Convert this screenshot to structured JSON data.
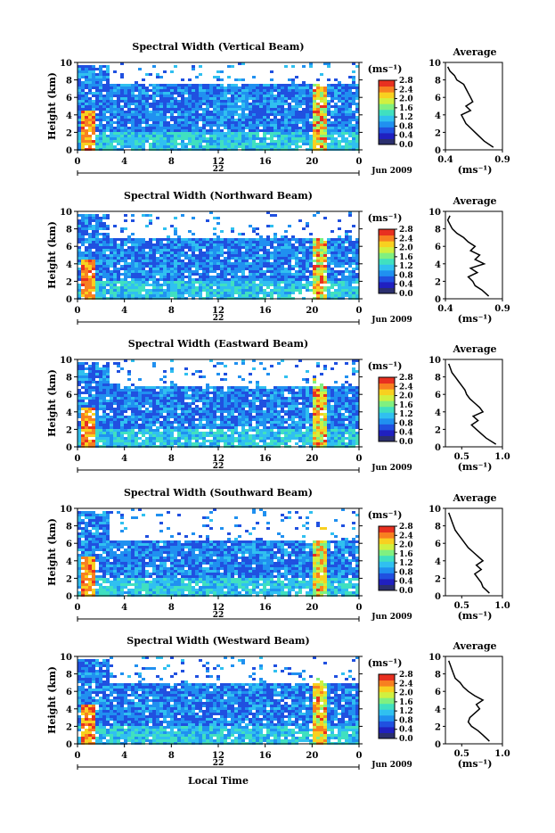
{
  "figure": {
    "ylabel": "Height (km)",
    "xlabel": "Local Time",
    "date_label": "Jun 2009",
    "day_label": "22",
    "unit_label": "(ms⁻¹)",
    "avg_title": "Average",
    "avg_unit": "(ms⁻¹)"
  },
  "colors": {
    "scale": [
      "#2b2f6e",
      "#2020c0",
      "#2050e0",
      "#2090f0",
      "#30c0f0",
      "#40e0c0",
      "#80f080",
      "#d0f040",
      "#f8d020",
      "#f88020",
      "#e83020"
    ],
    "background": "#ffffff"
  },
  "chart_data": [
    {
      "type": "heatmap",
      "title": "Spectral Width (Vertical Beam)",
      "xlim": [
        0,
        24
      ],
      "ylim": [
        0,
        10
      ],
      "xticks": [
        "0",
        "4",
        "8",
        "12",
        "16",
        "20",
        "0"
      ],
      "yticks": [
        "0",
        "2",
        "4",
        "6",
        "8",
        "10"
      ],
      "colorbar_ticks": [
        "0.0",
        "0.4",
        "0.8",
        "1.2",
        "1.6",
        "2.0",
        "2.4",
        "2.8"
      ],
      "colorbar_range": [
        0,
        2.8
      ],
      "top_km": 7.6,
      "profile": {
        "xlim": [
          0.4,
          0.9
        ],
        "xticks": [
          "0.4",
          "0.9"
        ],
        "height": [
          0.3,
          1,
          1.5,
          2,
          2.5,
          3,
          3.5,
          4,
          4.5,
          5,
          5.5,
          6,
          6.5,
          7,
          7.5,
          8,
          8.5,
          9,
          9.5
        ],
        "width": [
          0.82,
          0.74,
          0.7,
          0.66,
          0.62,
          0.58,
          0.56,
          0.54,
          0.62,
          0.58,
          0.64,
          0.62,
          0.6,
          0.58,
          0.56,
          0.5,
          0.48,
          0.44,
          0.42
        ]
      }
    },
    {
      "type": "heatmap",
      "title": "Spectral Width (Northward Beam)",
      "xlim": [
        0,
        24
      ],
      "ylim": [
        0,
        10
      ],
      "xticks": [
        "0",
        "4",
        "8",
        "12",
        "16",
        "20",
        "0"
      ],
      "yticks": [
        "0",
        "2",
        "4",
        "6",
        "8",
        "10"
      ],
      "colorbar_ticks": [
        "0.0",
        "0.4",
        "0.8",
        "1.2",
        "1.6",
        "2.0",
        "2.4",
        "2.8"
      ],
      "colorbar_range": [
        0,
        2.8
      ],
      "top_km": 7.0,
      "profile": {
        "xlim": [
          0.4,
          0.9
        ],
        "xticks": [
          "0.4",
          "0.9"
        ],
        "height": [
          0.3,
          1,
          1.5,
          2,
          2.5,
          3,
          3.5,
          4,
          4.5,
          5,
          5.5,
          6,
          6.5,
          7,
          7.5,
          8,
          8.5,
          9,
          9.5
        ],
        "width": [
          0.78,
          0.72,
          0.66,
          0.64,
          0.6,
          0.68,
          0.62,
          0.74,
          0.66,
          0.7,
          0.62,
          0.66,
          0.6,
          0.56,
          0.5,
          0.46,
          0.44,
          0.42,
          0.44
        ]
      }
    },
    {
      "type": "heatmap",
      "title": "Spectral Width (Eastward Beam)",
      "xlim": [
        0,
        24
      ],
      "ylim": [
        0,
        10
      ],
      "xticks": [
        "0",
        "4",
        "8",
        "12",
        "16",
        "20",
        "0"
      ],
      "yticks": [
        "0",
        "2",
        "4",
        "6",
        "8",
        "10"
      ],
      "colorbar_ticks": [
        "0.0",
        "0.4",
        "0.8",
        "1.2",
        "1.6",
        "2.0",
        "2.4",
        "2.8"
      ],
      "colorbar_range": [
        0,
        2.8
      ],
      "top_km": 7.0,
      "profile": {
        "xlim": [
          0.3,
          1.0
        ],
        "xticks": [
          "0.5",
          "1.0"
        ],
        "height": [
          0.3,
          1,
          1.5,
          2,
          2.5,
          3,
          3.5,
          4,
          4.5,
          5,
          5.5,
          6,
          6.5,
          7,
          7.5,
          8,
          8.5,
          9,
          9.5
        ],
        "width": [
          0.92,
          0.8,
          0.74,
          0.68,
          0.62,
          0.7,
          0.64,
          0.76,
          0.72,
          0.66,
          0.6,
          0.56,
          0.54,
          0.5,
          0.46,
          0.42,
          0.38,
          0.36,
          0.34
        ]
      }
    },
    {
      "type": "heatmap",
      "title": "Spectral Width (Southward Beam)",
      "xlim": [
        0,
        24
      ],
      "ylim": [
        0,
        10
      ],
      "xticks": [
        "0",
        "4",
        "8",
        "12",
        "16",
        "20",
        "0"
      ],
      "yticks": [
        "0",
        "2",
        "4",
        "6",
        "8",
        "10"
      ],
      "colorbar_ticks": [
        "0.0",
        "0.4",
        "0.8",
        "1.2",
        "1.6",
        "2.0",
        "2.4",
        "2.8"
      ],
      "colorbar_range": [
        0,
        2.8
      ],
      "top_km": 6.6,
      "profile": {
        "xlim": [
          0.3,
          1.0
        ],
        "xticks": [
          "0.5",
          "1.0"
        ],
        "height": [
          0.3,
          1,
          1.5,
          2,
          2.5,
          3,
          3.5,
          4,
          4.5,
          5,
          5.5,
          6,
          6.5,
          7,
          7.5,
          8,
          8.5,
          9,
          9.5
        ],
        "width": [
          0.84,
          0.76,
          0.74,
          0.7,
          0.66,
          0.74,
          0.68,
          0.76,
          0.7,
          0.64,
          0.58,
          0.54,
          0.5,
          0.46,
          0.42,
          0.4,
          0.38,
          0.36,
          0.34
        ]
      }
    },
    {
      "type": "heatmap",
      "title": "Spectral Width (Westward Beam)",
      "xlim": [
        0,
        24
      ],
      "ylim": [
        0,
        10
      ],
      "xticks": [
        "0",
        "4",
        "8",
        "12",
        "16",
        "20",
        "0"
      ],
      "yticks": [
        "0",
        "2",
        "4",
        "6",
        "8",
        "10"
      ],
      "colorbar_ticks": [
        "0.0",
        "0.4",
        "0.8",
        "1.2",
        "1.6",
        "2.0",
        "2.4",
        "2.8"
      ],
      "colorbar_range": [
        0,
        2.8
      ],
      "top_km": 7.0,
      "profile": {
        "xlim": [
          0.3,
          1.0
        ],
        "xticks": [
          "0.5",
          "1.0"
        ],
        "height": [
          0.3,
          1,
          1.5,
          2,
          2.5,
          3,
          3.5,
          4,
          4.5,
          5,
          5.5,
          6,
          6.5,
          7,
          7.5,
          8,
          8.5,
          9,
          9.5
        ],
        "width": [
          0.84,
          0.76,
          0.7,
          0.62,
          0.58,
          0.6,
          0.66,
          0.72,
          0.68,
          0.76,
          0.66,
          0.58,
          0.52,
          0.48,
          0.42,
          0.4,
          0.38,
          0.36,
          0.34
        ]
      }
    }
  ]
}
